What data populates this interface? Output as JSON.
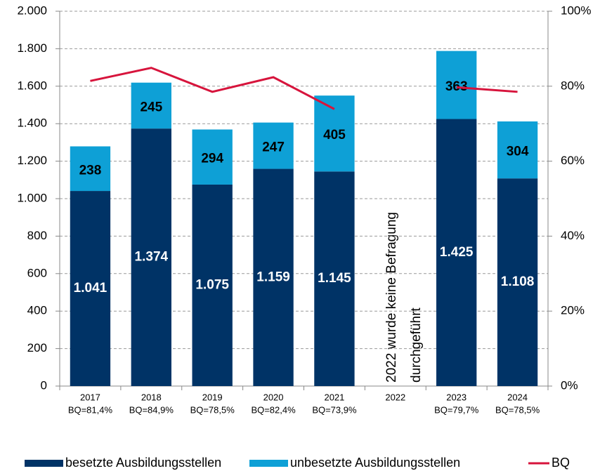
{
  "chart_data": {
    "type": "bar",
    "categories": [
      "2017",
      "2018",
      "2019",
      "2020",
      "2021",
      "2022",
      "2023",
      "2024"
    ],
    "series": [
      {
        "name": "besetzte Ausbildungsstellen",
        "color": "#003366",
        "values": [
          1041,
          1374,
          1075,
          1159,
          1145,
          null,
          1425,
          1108
        ],
        "value_labels": [
          "1.041",
          "1.374",
          "1.075",
          "1.159",
          "1.145",
          null,
          "1.425",
          "1.108"
        ]
      },
      {
        "name": "unbesetzte Ausbildungsstellen",
        "color": "#0ea0d6",
        "values": [
          238,
          245,
          294,
          247,
          405,
          null,
          363,
          304
        ]
      },
      {
        "name": "BQ",
        "type": "line",
        "axis": "y2",
        "color": "#d7143c",
        "values": [
          81.4,
          84.9,
          78.5,
          82.4,
          73.9,
          null,
          79.7,
          78.5
        ],
        "value_labels": [
          "BQ=81,4%",
          "BQ=84,9%",
          "BQ=78,5%",
          "BQ=82,4%",
          "BQ=73,9%",
          null,
          "BQ=79,7%",
          "BQ=78,5%"
        ]
      }
    ],
    "stacked": true,
    "ylim": [
      0,
      2000
    ],
    "yticks": [
      0,
      {
        "value": 200,
        "label": "200"
      },
      {
        "value": 400,
        "label": "400"
      },
      {
        "value": 600,
        "label": "600"
      },
      {
        "value": 800,
        "label": "800"
      },
      {
        "value": 1000,
        "label": "1.000"
      },
      {
        "value": 1200,
        "label": "1.200"
      },
      {
        "value": 1400,
        "label": "1.400"
      },
      {
        "value": 1600,
        "label": "1.600"
      },
      {
        "value": 1800,
        "label": "1.800"
      },
      {
        "value": 2000,
        "label": "2.000"
      }
    ],
    "y2lim": [
      0,
      100
    ],
    "y2ticks": [
      {
        "value": 0,
        "label": "0%"
      },
      {
        "value": 20,
        "label": "20%"
      },
      {
        "value": 40,
        "label": "40%"
      },
      {
        "value": 60,
        "label": "60%"
      },
      {
        "value": 80,
        "label": "80%"
      },
      {
        "value": 100,
        "label": "100%"
      }
    ],
    "grid": true,
    "annotation": [
      "2022 wurde keine Befragung",
      "durchgeführt"
    ],
    "legend": "bottom"
  }
}
